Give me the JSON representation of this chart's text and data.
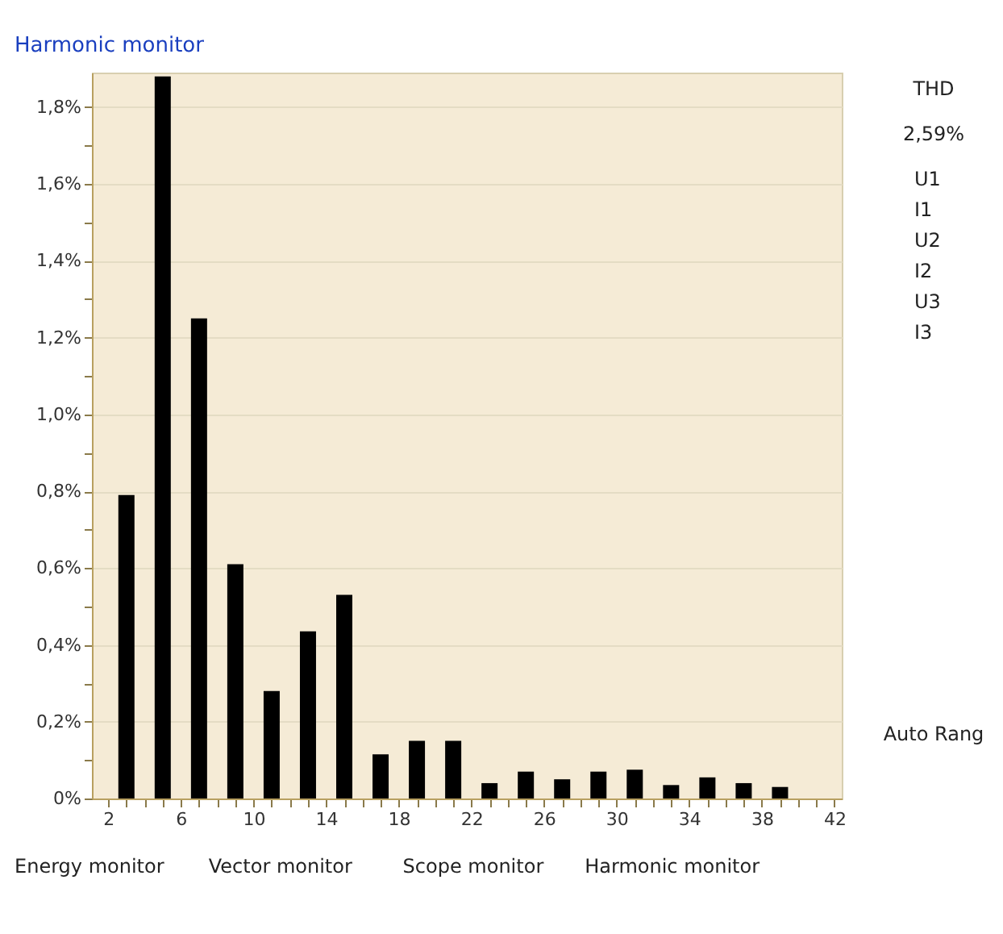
{
  "chart_data": {
    "type": "bar",
    "title": "Harmonic monitor",
    "x": [
      3,
      5,
      7,
      9,
      11,
      13,
      15,
      17,
      19,
      21,
      23,
      25,
      27,
      29,
      31,
      33,
      35,
      37,
      39
    ],
    "values": [
      0.79,
      1.88,
      1.25,
      0.61,
      0.28,
      0.435,
      0.53,
      0.115,
      0.15,
      0.15,
      0.04,
      0.07,
      0.05,
      0.07,
      0.075,
      0.035,
      0.055,
      0.04,
      0.03
    ],
    "color": "#000000",
    "xlim": [
      1.1,
      42.4
    ],
    "xticks": [
      {
        "value": 2,
        "label": "2"
      },
      {
        "value": 3,
        "label": null
      },
      {
        "value": 4,
        "label": null
      },
      {
        "value": 5,
        "label": null
      },
      {
        "value": 6,
        "label": "6"
      },
      {
        "value": 7,
        "label": null
      },
      {
        "value": 8,
        "label": null
      },
      {
        "value": 9,
        "label": null
      },
      {
        "value": 10,
        "label": "10"
      },
      {
        "value": 11,
        "label": null
      },
      {
        "value": 12,
        "label": null
      },
      {
        "value": 13,
        "label": null
      },
      {
        "value": 14,
        "label": "14"
      },
      {
        "value": 15,
        "label": null
      },
      {
        "value": 16,
        "label": null
      },
      {
        "value": 17,
        "label": null
      },
      {
        "value": 18,
        "label": "18"
      },
      {
        "value": 19,
        "label": null
      },
      {
        "value": 20,
        "label": null
      },
      {
        "value": 21,
        "label": null
      },
      {
        "value": 22,
        "label": "22"
      },
      {
        "value": 23,
        "label": null
      },
      {
        "value": 24,
        "label": null
      },
      {
        "value": 25,
        "label": null
      },
      {
        "value": 26,
        "label": "26"
      },
      {
        "value": 27,
        "label": null
      },
      {
        "value": 28,
        "label": null
      },
      {
        "value": 29,
        "label": null
      },
      {
        "value": 30,
        "label": "30"
      },
      {
        "value": 31,
        "label": null
      },
      {
        "value": 32,
        "label": null
      },
      {
        "value": 33,
        "label": null
      },
      {
        "value": 34,
        "label": "34"
      },
      {
        "value": 35,
        "label": null
      },
      {
        "value": 36,
        "label": null
      },
      {
        "value": 37,
        "label": null
      },
      {
        "value": 38,
        "label": "38"
      },
      {
        "value": 39,
        "label": null
      },
      {
        "value": 40,
        "label": null
      },
      {
        "value": 41,
        "label": null
      },
      {
        "value": 42,
        "label": "42"
      }
    ],
    "ylim": [
      0,
      1.89
    ],
    "yticks": [
      {
        "value": 0,
        "label": "0%"
      },
      {
        "value": 0.1,
        "label": null
      },
      {
        "value": 0.2,
        "label": "0,2%"
      },
      {
        "value": 0.3,
        "label": null
      },
      {
        "value": 0.4,
        "label": "0,4%"
      },
      {
        "value": 0.5,
        "label": null
      },
      {
        "value": 0.6,
        "label": "0,6%"
      },
      {
        "value": 0.7,
        "label": null
      },
      {
        "value": 0.8,
        "label": "0,8%"
      },
      {
        "value": 0.9,
        "label": null
      },
      {
        "value": 1.0,
        "label": "1,0%"
      },
      {
        "value": 1.1,
        "label": null
      },
      {
        "value": 1.2,
        "label": "1,2%"
      },
      {
        "value": 1.3,
        "label": null
      },
      {
        "value": 1.4,
        "label": "1,4%"
      },
      {
        "value": 1.5,
        "label": null
      },
      {
        "value": 1.6,
        "label": "1,6%"
      },
      {
        "value": 1.7,
        "label": null
      },
      {
        "value": 1.8,
        "label": "1,8%"
      }
    ],
    "grid": "y",
    "annotations": [
      "THD",
      "2,59%",
      "U1",
      "I1",
      "U2",
      "I2",
      "U3",
      "I3",
      "Auto Rang",
      "Energy monitor",
      "Vector monitor",
      "Scope monitor",
      "Harmonic monitor"
    ]
  }
}
